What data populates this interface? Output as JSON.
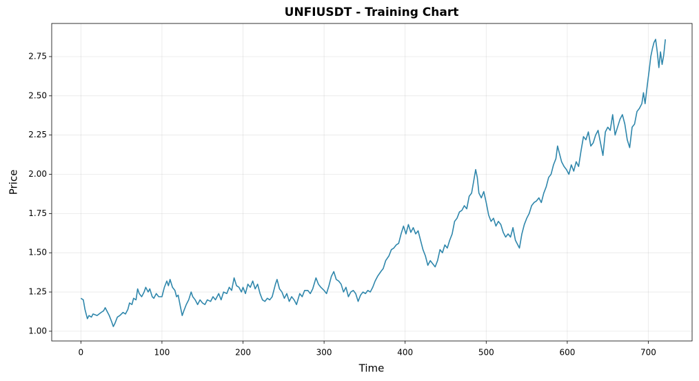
{
  "chart_data": {
    "type": "line",
    "title": "UNFIUSDT - Training Chart",
    "xlabel": "Time",
    "ylabel": "Price",
    "xlim": [
      -36,
      754
    ],
    "ylim": [
      0.938,
      2.961
    ],
    "xticks": [
      0,
      100,
      200,
      300,
      400,
      500,
      600,
      700
    ],
    "yticks": [
      {
        "value": 1,
        "label": "1.00"
      },
      1.25,
      {
        "value": 1.5,
        "label": "1.50"
      },
      1.75,
      {
        "value": 2,
        "label": "2.00"
      },
      2.25,
      {
        "value": 2.5,
        "label": "2.50"
      },
      2.75
    ],
    "grid": true,
    "series": [
      {
        "name": "Price",
        "color": "#2e86ab",
        "x": [
          0,
          3,
          5,
          8,
          10,
          13,
          15,
          20,
          25,
          28,
          30,
          32,
          35,
          38,
          40,
          42,
          45,
          48,
          52,
          55,
          58,
          60,
          63,
          65,
          68,
          70,
          72,
          75,
          78,
          80,
          83,
          85,
          88,
          90,
          93,
          96,
          100,
          103,
          106,
          108,
          110,
          113,
          116,
          118,
          120,
          123,
          125,
          127,
          130,
          133,
          136,
          138,
          141,
          144,
          147,
          150,
          153,
          156,
          160,
          163,
          166,
          170,
          173,
          176,
          180,
          183,
          186,
          189,
          192,
          195,
          198,
          200,
          203,
          206,
          209,
          212,
          215,
          218,
          221,
          224,
          227,
          230,
          233,
          236,
          240,
          242,
          245,
          248,
          251,
          254,
          257,
          260,
          263,
          266,
          270,
          273,
          276,
          280,
          283,
          286,
          290,
          293,
          296,
          300,
          303,
          306,
          309,
          312,
          315,
          318,
          321,
          324,
          327,
          330,
          333,
          336,
          339,
          342,
          345,
          348,
          351,
          354,
          357,
          360,
          363,
          366,
          370,
          373,
          376,
          380,
          383,
          386,
          389,
          392,
          395,
          398,
          401,
          404,
          407,
          410,
          413,
          416,
          419,
          422,
          425,
          428,
          431,
          434,
          437,
          440,
          443,
          446,
          449,
          452,
          455,
          458,
          461,
          464,
          467,
          470,
          473,
          476,
          479,
          482,
          485,
          487,
          489,
          491,
          494,
          497,
          500,
          503,
          506,
          509,
          512,
          515,
          518,
          521,
          524,
          527,
          530,
          533,
          536,
          539,
          541,
          544,
          547,
          550,
          553,
          556,
          559,
          562,
          565,
          568,
          571,
          574,
          577,
          580,
          583,
          586,
          588,
          590,
          593,
          596,
          599,
          602,
          605,
          608,
          611,
          614,
          617,
          620,
          623,
          626,
          629,
          632,
          635,
          638,
          641,
          644,
          647,
          650,
          653,
          656,
          659,
          662,
          665,
          668,
          671,
          674,
          677,
          680,
          683,
          686,
          689,
          692,
          694,
          696,
          699,
          701,
          703,
          705,
          707,
          709,
          711,
          713,
          715,
          717,
          719,
          721
        ],
        "values": [
          1.21,
          1.2,
          1.14,
          1.08,
          1.1,
          1.09,
          1.11,
          1.1,
          1.12,
          1.13,
          1.15,
          1.13,
          1.1,
          1.06,
          1.03,
          1.05,
          1.09,
          1.1,
          1.12,
          1.11,
          1.14,
          1.18,
          1.17,
          1.21,
          1.2,
          1.27,
          1.24,
          1.22,
          1.25,
          1.28,
          1.25,
          1.27,
          1.22,
          1.21,
          1.24,
          1.22,
          1.22,
          1.28,
          1.32,
          1.29,
          1.33,
          1.28,
          1.26,
          1.22,
          1.23,
          1.15,
          1.1,
          1.13,
          1.17,
          1.2,
          1.25,
          1.22,
          1.2,
          1.17,
          1.2,
          1.18,
          1.17,
          1.2,
          1.19,
          1.22,
          1.2,
          1.24,
          1.2,
          1.25,
          1.24,
          1.28,
          1.26,
          1.34,
          1.29,
          1.28,
          1.25,
          1.28,
          1.24,
          1.3,
          1.28,
          1.32,
          1.27,
          1.3,
          1.24,
          1.2,
          1.19,
          1.21,
          1.2,
          1.22,
          1.3,
          1.33,
          1.27,
          1.25,
          1.21,
          1.24,
          1.19,
          1.22,
          1.2,
          1.17,
          1.24,
          1.22,
          1.26,
          1.26,
          1.24,
          1.27,
          1.34,
          1.3,
          1.28,
          1.26,
          1.24,
          1.29,
          1.35,
          1.38,
          1.33,
          1.32,
          1.3,
          1.25,
          1.28,
          1.22,
          1.25,
          1.26,
          1.24,
          1.19,
          1.23,
          1.25,
          1.24,
          1.26,
          1.25,
          1.28,
          1.32,
          1.35,
          1.38,
          1.4,
          1.45,
          1.48,
          1.52,
          1.53,
          1.55,
          1.56,
          1.62,
          1.67,
          1.62,
          1.68,
          1.63,
          1.66,
          1.62,
          1.64,
          1.58,
          1.52,
          1.48,
          1.42,
          1.45,
          1.43,
          1.41,
          1.45,
          1.52,
          1.5,
          1.55,
          1.53,
          1.58,
          1.62,
          1.7,
          1.72,
          1.76,
          1.77,
          1.8,
          1.78,
          1.86,
          1.88,
          1.97,
          2.03,
          1.98,
          1.88,
          1.85,
          1.89,
          1.82,
          1.74,
          1.7,
          1.72,
          1.67,
          1.7,
          1.68,
          1.63,
          1.6,
          1.62,
          1.6,
          1.66,
          1.58,
          1.55,
          1.53,
          1.62,
          1.68,
          1.72,
          1.75,
          1.8,
          1.82,
          1.83,
          1.85,
          1.82,
          1.88,
          1.92,
          1.98,
          2.0,
          2.06,
          2.1,
          2.18,
          2.14,
          2.08,
          2.05,
          2.03,
          2.0,
          2.06,
          2.02,
          2.08,
          2.05,
          2.15,
          2.24,
          2.22,
          2.27,
          2.18,
          2.2,
          2.25,
          2.28,
          2.2,
          2.12,
          2.27,
          2.3,
          2.28,
          2.38,
          2.25,
          2.3,
          2.35,
          2.38,
          2.32,
          2.22,
          2.17,
          2.3,
          2.32,
          2.4,
          2.42,
          2.45,
          2.52,
          2.45,
          2.58,
          2.66,
          2.75,
          2.8,
          2.84,
          2.86,
          2.78,
          2.68,
          2.78,
          2.7,
          2.76,
          2.86
        ]
      }
    ]
  }
}
